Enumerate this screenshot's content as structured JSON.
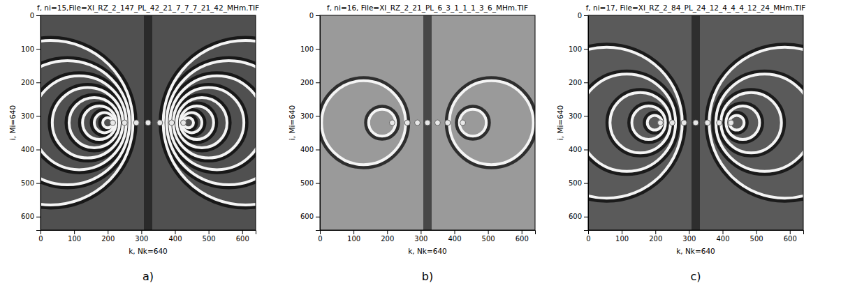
{
  "chart_data": [
    {
      "type": "image",
      "label": "a)",
      "title": "f, ni=15,File=XI_RZ_2_147_PL_42_21_7_7_7_21_42_MHm.TIF",
      "x_label": "k, Nk=640",
      "y_label": "i, Mi=640",
      "xlim": [
        0,
        640
      ],
      "ylim": [
        640,
        0
      ],
      "xticks": [
        0,
        100,
        200,
        300,
        400,
        500,
        600
      ],
      "yticks": [
        0,
        100,
        200,
        300,
        400,
        500,
        600
      ],
      "points": {
        "x": [
          215,
          250,
          285,
          320,
          355,
          390,
          425
        ],
        "y": [
          320,
          320,
          320,
          320,
          320,
          320,
          320
        ]
      },
      "rings": {
        "cx": [
          200,
          190,
          175,
          160,
          140,
          115,
          80,
          30,
          440,
          450,
          465,
          480,
          500,
          525,
          560,
          610
        ],
        "cy": [
          320,
          320,
          320,
          320,
          320,
          320,
          320,
          320,
          320,
          320,
          320,
          320,
          320,
          320,
          320,
          320
        ],
        "r": [
          15,
          30,
          50,
          75,
          105,
          140,
          185,
          245,
          15,
          30,
          50,
          75,
          105,
          140,
          185,
          245
        ]
      }
    },
    {
      "type": "image",
      "label": "b)",
      "title": "f, ni=16, File=XI_RZ_2_21_PL_6_3_1_1_1_3_6_MHm.TIF",
      "x_label": "k, Nk=640",
      "y_label": "i, Mi=640",
      "xlim": [
        0,
        640
      ],
      "ylim": [
        640,
        0
      ],
      "xticks": [
        0,
        100,
        200,
        300,
        400,
        500,
        600
      ],
      "yticks": [
        0,
        100,
        200,
        300,
        400,
        500,
        600
      ],
      "points": {
        "x": [
          215,
          260,
          290,
          320,
          350,
          380,
          425
        ],
        "y": [
          320,
          320,
          320,
          320,
          320,
          320,
          320
        ]
      },
      "rings": {
        "cx": [
          185,
          130,
          455,
          510
        ],
        "cy": [
          320,
          320,
          320,
          320
        ],
        "r": [
          40,
          125,
          40,
          125
        ]
      }
    },
    {
      "type": "image",
      "label": "c)",
      "title": "f, ni=17, File=XI_RZ_2_84_PL_24_12_4_4_4_12_24_MHm.TIF",
      "x_label": "k, Nk=640",
      "y_label": "i, Mi=640",
      "xlim": [
        0,
        640
      ],
      "ylim": [
        640,
        0
      ],
      "xticks": [
        0,
        100,
        200,
        300,
        400,
        500,
        600
      ],
      "yticks": [
        0,
        100,
        200,
        300,
        400,
        500,
        600
      ],
      "points": {
        "x": [
          215,
          250,
          285,
          320,
          355,
          390,
          425
        ],
        "y": [
          320,
          320,
          320,
          320,
          320,
          320,
          320
        ]
      },
      "rings": {
        "cx": [
          198,
          180,
          155,
          115,
          55,
          442,
          460,
          485,
          525,
          585
        ],
        "cy": [
          320,
          320,
          320,
          320,
          320,
          320,
          320,
          320,
          320,
          320
        ],
        "r": [
          22,
          50,
          90,
          145,
          225,
          22,
          50,
          90,
          145,
          225
        ]
      }
    }
  ]
}
